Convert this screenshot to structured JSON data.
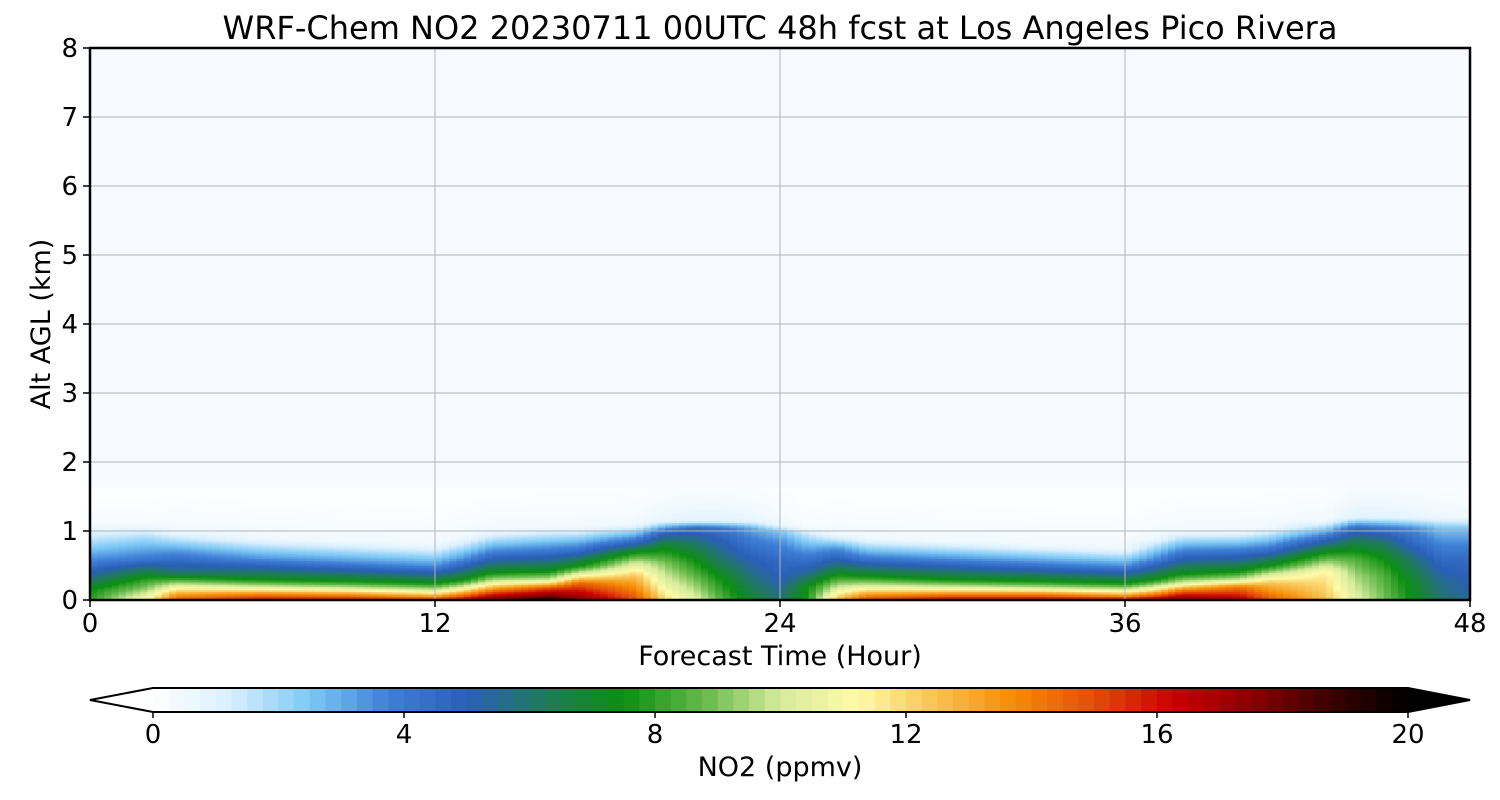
{
  "chart_data": {
    "type": "heatmap",
    "title": "WRF-Chem NO2  20230711 00UTC 48h fcst at Los Angeles Pico Rivera",
    "xlabel": "Forecast Time (Hour)",
    "ylabel": "Alt AGL (km)",
    "xlim": [
      0,
      48
    ],
    "ylim": [
      0,
      8
    ],
    "xticks": [
      "0",
      "12",
      "24",
      "36",
      "48"
    ],
    "yticks": [
      "0",
      "1",
      "2",
      "3",
      "4",
      "5",
      "6",
      "7",
      "8"
    ],
    "grid": true,
    "colorbar": {
      "label": "NO2  (ppmv)",
      "range": [
        0,
        20
      ],
      "ticks": [
        "0",
        "4",
        "8",
        "12",
        "16",
        "20"
      ],
      "extend": "both",
      "orientation": "horizontal",
      "colors": [
        "#ffffff",
        "#d8efff",
        "#7cc8f5",
        "#3f7fd6",
        "#2a5fb8",
        "#1f7a5a",
        "#0b8f10",
        "#64b84a",
        "#d6ec9c",
        "#fffaa8",
        "#f8c050",
        "#f58a05",
        "#e24d08",
        "#c80000",
        "#8a0000",
        "#3a0000",
        "#000000"
      ]
    },
    "profiles_hour": [
      0,
      2,
      3,
      6,
      9,
      12,
      13,
      14,
      16,
      17,
      19,
      20,
      21,
      22,
      23,
      24,
      25,
      26,
      27,
      30,
      33,
      36,
      37,
      38,
      40,
      41,
      43,
      44,
      45,
      46,
      47,
      48
    ],
    "profiles": [
      {
        "hour": 0,
        "levels": [
          [
            0.0,
            8.0
          ],
          [
            0.15,
            7.5
          ],
          [
            0.35,
            5.5
          ],
          [
            0.6,
            3.5
          ],
          [
            0.9,
            1.5
          ],
          [
            1.1,
            0.3
          ]
        ]
      },
      {
        "hour": 2,
        "levels": [
          [
            0.0,
            11.5
          ],
          [
            0.15,
            9.5
          ],
          [
            0.35,
            7.5
          ],
          [
            0.6,
            4.0
          ],
          [
            0.9,
            2.0
          ],
          [
            1.1,
            0.3
          ]
        ]
      },
      {
        "hour": 3,
        "levels": [
          [
            0.0,
            15.0
          ],
          [
            0.1,
            13.0
          ],
          [
            0.25,
            9.5
          ],
          [
            0.4,
            6.0
          ],
          [
            0.7,
            3.5
          ],
          [
            1.0,
            0.5
          ]
        ]
      },
      {
        "hour": 6,
        "levels": [
          [
            0.0,
            16.5
          ],
          [
            0.1,
            13.5
          ],
          [
            0.2,
            10.0
          ],
          [
            0.3,
            7.5
          ],
          [
            0.6,
            3.5
          ],
          [
            0.9,
            0.5
          ]
        ]
      },
      {
        "hour": 9,
        "levels": [
          [
            0.0,
            16.5
          ],
          [
            0.1,
            13.0
          ],
          [
            0.18,
            10.0
          ],
          [
            0.28,
            7.5
          ],
          [
            0.55,
            3.5
          ],
          [
            0.85,
            0.5
          ]
        ]
      },
      {
        "hour": 12,
        "levels": [
          [
            0.0,
            16.0
          ],
          [
            0.08,
            12.5
          ],
          [
            0.15,
            10.0
          ],
          [
            0.25,
            7.5
          ],
          [
            0.5,
            3.5
          ],
          [
            0.8,
            0.5
          ]
        ]
      },
      {
        "hour": 13,
        "levels": [
          [
            0.0,
            17.0
          ],
          [
            0.1,
            13.5
          ],
          [
            0.2,
            10.0
          ],
          [
            0.3,
            7.5
          ],
          [
            0.6,
            3.5
          ],
          [
            0.9,
            0.5
          ]
        ]
      },
      {
        "hour": 14,
        "levels": [
          [
            0.0,
            18.5
          ],
          [
            0.15,
            14.0
          ],
          [
            0.28,
            10.0
          ],
          [
            0.4,
            7.5
          ],
          [
            0.7,
            3.8
          ],
          [
            1.0,
            0.5
          ]
        ]
      },
      {
        "hour": 16,
        "levels": [
          [
            0.0,
            19.5
          ],
          [
            0.18,
            15.0
          ],
          [
            0.3,
            10.0
          ],
          [
            0.42,
            7.5
          ],
          [
            0.72,
            4.0
          ],
          [
            1.05,
            0.5
          ]
        ]
      },
      {
        "hour": 17,
        "levels": [
          [
            0.0,
            18.0
          ],
          [
            0.25,
            14.5
          ],
          [
            0.38,
            10.5
          ],
          [
            0.5,
            7.5
          ],
          [
            0.75,
            4.0
          ],
          [
            1.05,
            0.5
          ]
        ]
      },
      {
        "hour": 19,
        "levels": [
          [
            0.0,
            15.0
          ],
          [
            0.35,
            12.5
          ],
          [
            0.55,
            10.0
          ],
          [
            0.7,
            7.5
          ],
          [
            0.85,
            4.5
          ],
          [
            1.1,
            0.5
          ]
        ]
      },
      {
        "hour": 20,
        "levels": [
          [
            0.0,
            12.0
          ],
          [
            0.25,
            10.5
          ],
          [
            0.55,
            9.0
          ],
          [
            0.8,
            7.0
          ],
          [
            1.0,
            4.5
          ],
          [
            1.15,
            0.8
          ]
        ]
      },
      {
        "hour": 21,
        "levels": [
          [
            0.0,
            10.5
          ],
          [
            0.3,
            9.0
          ],
          [
            0.6,
            7.5
          ],
          [
            0.85,
            6.0
          ],
          [
            1.05,
            4.5
          ],
          [
            1.15,
            1.0
          ]
        ]
      },
      {
        "hour": 22,
        "levels": [
          [
            0.0,
            8.5
          ],
          [
            0.3,
            7.5
          ],
          [
            0.6,
            6.0
          ],
          [
            0.85,
            5.0
          ],
          [
            1.05,
            4.0
          ],
          [
            1.15,
            1.0
          ]
        ]
      },
      {
        "hour": 23,
        "levels": [
          [
            0.0,
            7.0
          ],
          [
            0.3,
            6.0
          ],
          [
            0.6,
            5.0
          ],
          [
            0.85,
            4.0
          ],
          [
            1.05,
            3.0
          ],
          [
            1.15,
            0.8
          ]
        ]
      },
      {
        "hour": 24,
        "levels": [
          [
            0.0,
            6.0
          ],
          [
            0.3,
            5.0
          ],
          [
            0.6,
            4.5
          ],
          [
            0.85,
            3.5
          ],
          [
            1.0,
            2.5
          ],
          [
            1.1,
            0.5
          ]
        ]
      },
      {
        "hour": 25,
        "levels": [
          [
            0.0,
            8.0
          ],
          [
            0.2,
            7.5
          ],
          [
            0.4,
            5.5
          ],
          [
            0.7,
            3.5
          ],
          [
            0.95,
            1.5
          ],
          [
            1.05,
            0.3
          ]
        ]
      },
      {
        "hour": 26,
        "levels": [
          [
            0.0,
            13.0
          ],
          [
            0.12,
            11.0
          ],
          [
            0.3,
            8.5
          ],
          [
            0.45,
            6.5
          ],
          [
            0.75,
            3.5
          ],
          [
            0.95,
            0.5
          ]
        ]
      },
      {
        "hour": 27,
        "levels": [
          [
            0.0,
            15.5
          ],
          [
            0.1,
            13.0
          ],
          [
            0.22,
            10.0
          ],
          [
            0.35,
            7.5
          ],
          [
            0.65,
            3.5
          ],
          [
            0.9,
            0.5
          ]
        ]
      },
      {
        "hour": 30,
        "levels": [
          [
            0.0,
            17.0
          ],
          [
            0.1,
            13.5
          ],
          [
            0.2,
            10.0
          ],
          [
            0.3,
            7.5
          ],
          [
            0.6,
            3.5
          ],
          [
            0.85,
            0.5
          ]
        ]
      },
      {
        "hour": 33,
        "levels": [
          [
            0.0,
            17.0
          ],
          [
            0.1,
            13.5
          ],
          [
            0.18,
            10.0
          ],
          [
            0.28,
            7.5
          ],
          [
            0.55,
            3.5
          ],
          [
            0.8,
            0.5
          ]
        ]
      },
      {
        "hour": 36,
        "levels": [
          [
            0.0,
            17.0
          ],
          [
            0.08,
            13.0
          ],
          [
            0.16,
            10.0
          ],
          [
            0.25,
            7.5
          ],
          [
            0.5,
            3.5
          ],
          [
            0.75,
            0.5
          ]
        ]
      },
      {
        "hour": 37,
        "levels": [
          [
            0.0,
            17.5
          ],
          [
            0.1,
            13.5
          ],
          [
            0.2,
            10.0
          ],
          [
            0.3,
            7.5
          ],
          [
            0.6,
            3.5
          ],
          [
            0.9,
            0.5
          ]
        ]
      },
      {
        "hour": 38,
        "levels": [
          [
            0.0,
            18.5
          ],
          [
            0.15,
            14.0
          ],
          [
            0.26,
            10.0
          ],
          [
            0.38,
            7.5
          ],
          [
            0.7,
            4.0
          ],
          [
            1.0,
            0.5
          ]
        ]
      },
      {
        "hour": 40,
        "levels": [
          [
            0.0,
            17.0
          ],
          [
            0.2,
            14.0
          ],
          [
            0.3,
            10.0
          ],
          [
            0.42,
            7.5
          ],
          [
            0.72,
            4.0
          ],
          [
            1.0,
            0.5
          ]
        ]
      },
      {
        "hour": 41,
        "levels": [
          [
            0.0,
            15.0
          ],
          [
            0.25,
            12.5
          ],
          [
            0.38,
            10.0
          ],
          [
            0.5,
            7.5
          ],
          [
            0.75,
            4.0
          ],
          [
            1.05,
            0.5
          ]
        ]
      },
      {
        "hour": 43,
        "levels": [
          [
            0.0,
            12.5
          ],
          [
            0.4,
            11.5
          ],
          [
            0.55,
            9.5
          ],
          [
            0.7,
            7.5
          ],
          [
            0.9,
            4.5
          ],
          [
            1.15,
            0.5
          ]
        ]
      },
      {
        "hour": 44,
        "levels": [
          [
            0.0,
            10.5
          ],
          [
            0.35,
            9.5
          ],
          [
            0.6,
            8.5
          ],
          [
            0.85,
            6.5
          ],
          [
            1.05,
            4.5
          ],
          [
            1.2,
            1.0
          ]
        ]
      },
      {
        "hour": 45,
        "levels": [
          [
            0.0,
            9.0
          ],
          [
            0.35,
            8.5
          ],
          [
            0.6,
            7.5
          ],
          [
            0.85,
            6.0
          ],
          [
            1.05,
            4.0
          ],
          [
            1.2,
            1.0
          ]
        ]
      },
      {
        "hour": 46,
        "levels": [
          [
            0.0,
            7.5
          ],
          [
            0.3,
            7.0
          ],
          [
            0.6,
            6.0
          ],
          [
            0.85,
            4.5
          ],
          [
            1.05,
            3.5
          ],
          [
            1.2,
            0.8
          ]
        ]
      },
      {
        "hour": 47,
        "levels": [
          [
            0.0,
            6.0
          ],
          [
            0.3,
            5.5
          ],
          [
            0.6,
            4.5
          ],
          [
            0.85,
            3.5
          ],
          [
            1.05,
            2.5
          ],
          [
            1.2,
            0.6
          ]
        ]
      },
      {
        "hour": 48,
        "levels": [
          [
            0.0,
            5.5
          ],
          [
            0.3,
            5.0
          ],
          [
            0.6,
            4.5
          ],
          [
            0.85,
            3.5
          ],
          [
            1.05,
            2.5
          ],
          [
            1.2,
            0.5
          ]
        ]
      }
    ]
  }
}
